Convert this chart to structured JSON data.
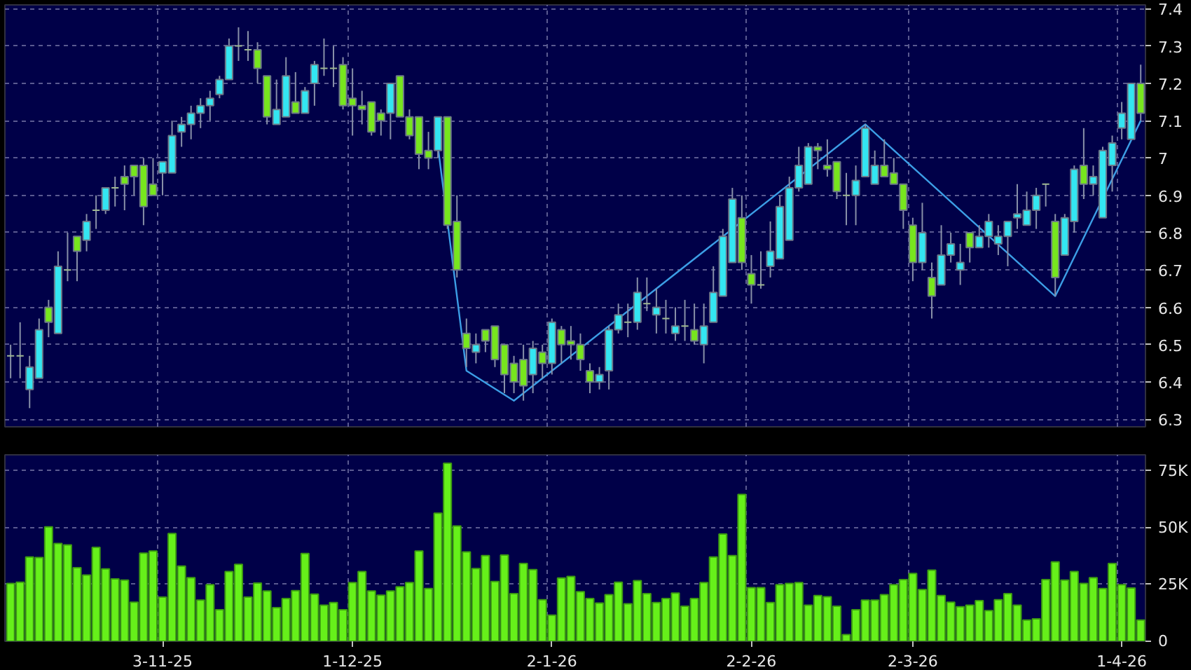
{
  "chart_data": [
    {
      "type": "candlestick",
      "grid": true,
      "tick_labels": "y",
      "categories": [
        null,
        null,
        null,
        null,
        null,
        null,
        null,
        null,
        null,
        null,
        null,
        null,
        null,
        null,
        null,
        null,
        null,
        null,
        null,
        null,
        null,
        null,
        null,
        null,
        null,
        null,
        null,
        null,
        null,
        null,
        null,
        null,
        null,
        null,
        null,
        null,
        null,
        null,
        null,
        null,
        null,
        null,
        null,
        null,
        null,
        null,
        null,
        null,
        null,
        null,
        null,
        null,
        null,
        null,
        null,
        null,
        null,
        null,
        null,
        null,
        null,
        null,
        null,
        null,
        null,
        null,
        null,
        null,
        null,
        null,
        null,
        null,
        null,
        null,
        null,
        null,
        null,
        null,
        null,
        null,
        null,
        null,
        null,
        null,
        null,
        null,
        null,
        null,
        null,
        null,
        null,
        null,
        null,
        null,
        null,
        null,
        null,
        null,
        null,
        null,
        null,
        null,
        null,
        null,
        null,
        null,
        null,
        null,
        null,
        null,
        null,
        null,
        null,
        null,
        null,
        null,
        null,
        null,
        null,
        null
      ],
      "ohlc": [
        [
          6.47,
          6.5,
          6.41,
          6.47
        ],
        [
          6.47,
          6.56,
          6.41,
          6.47
        ],
        [
          6.38,
          6.47,
          6.33,
          6.44
        ],
        [
          6.41,
          6.57,
          6.41,
          6.54
        ],
        [
          6.6,
          6.62,
          6.52,
          6.56
        ],
        [
          6.53,
          6.75,
          6.53,
          6.71
        ],
        [
          6.7,
          6.8,
          6.67,
          6.7
        ],
        [
          6.79,
          6.79,
          6.67,
          6.75
        ],
        [
          6.78,
          6.85,
          6.75,
          6.83
        ],
        [
          6.86,
          6.9,
          6.81,
          6.86
        ],
        [
          6.86,
          6.92,
          6.85,
          6.92
        ],
        [
          6.92,
          6.95,
          6.87,
          6.92
        ],
        [
          6.95,
          6.98,
          6.86,
          6.93
        ],
        [
          6.98,
          6.98,
          6.9,
          6.95
        ],
        [
          6.98,
          7.0,
          6.82,
          6.87
        ],
        [
          6.93,
          7.0,
          6.9,
          6.9
        ],
        [
          6.96,
          6.99,
          6.9,
          6.99
        ],
        [
          6.96,
          7.1,
          6.96,
          7.06
        ],
        [
          7.07,
          7.11,
          7.03,
          7.09
        ],
        [
          7.09,
          7.14,
          7.05,
          7.12
        ],
        [
          7.12,
          7.16,
          7.08,
          7.14
        ],
        [
          7.14,
          7.18,
          7.1,
          7.16
        ],
        [
          7.17,
          7.22,
          7.16,
          7.21
        ],
        [
          7.21,
          7.32,
          7.21,
          7.3
        ],
        [
          7.3,
          7.35,
          7.26,
          7.3
        ],
        [
          7.29,
          7.34,
          7.26,
          7.29
        ],
        [
          7.29,
          7.31,
          7.2,
          7.24
        ],
        [
          7.22,
          7.22,
          7.09,
          7.11
        ],
        [
          7.09,
          7.21,
          7.09,
          7.13
        ],
        [
          7.11,
          7.27,
          7.11,
          7.22
        ],
        [
          7.15,
          7.23,
          7.12,
          7.12
        ],
        [
          7.12,
          7.19,
          7.12,
          7.18
        ],
        [
          7.2,
          7.26,
          7.14,
          7.25
        ],
        [
          7.24,
          7.32,
          7.22,
          7.24
        ],
        [
          7.24,
          7.3,
          7.19,
          7.24
        ],
        [
          7.25,
          7.27,
          7.13,
          7.14
        ],
        [
          7.16,
          7.24,
          7.06,
          7.14
        ],
        [
          7.14,
          7.18,
          7.09,
          7.13
        ],
        [
          7.15,
          7.15,
          7.06,
          7.07
        ],
        [
          7.12,
          7.13,
          7.06,
          7.1
        ],
        [
          7.12,
          7.2,
          7.05,
          7.2
        ],
        [
          7.22,
          7.22,
          7.11,
          7.11
        ],
        [
          7.11,
          7.13,
          7.05,
          7.06
        ],
        [
          7.11,
          7.11,
          6.97,
          7.01
        ],
        [
          7.02,
          7.07,
          6.97,
          7.0
        ],
        [
          7.02,
          7.11,
          7.0,
          7.11
        ],
        [
          7.11,
          7.11,
          6.81,
          6.82
        ],
        [
          6.83,
          6.9,
          6.68,
          6.7
        ],
        [
          6.53,
          6.57,
          6.44,
          6.49
        ],
        [
          6.48,
          6.53,
          6.45,
          6.5
        ],
        [
          6.54,
          6.54,
          6.48,
          6.51
        ],
        [
          6.55,
          6.55,
          6.44,
          6.46
        ],
        [
          6.5,
          6.5,
          6.37,
          6.42
        ],
        [
          6.45,
          6.47,
          6.37,
          6.4
        ],
        [
          6.46,
          6.5,
          6.35,
          6.39
        ],
        [
          6.42,
          6.51,
          6.37,
          6.49
        ],
        [
          6.48,
          6.5,
          6.41,
          6.45
        ],
        [
          6.45,
          6.57,
          6.42,
          6.56
        ],
        [
          6.54,
          6.55,
          6.45,
          6.5
        ],
        [
          6.51,
          6.55,
          6.46,
          6.5
        ],
        [
          6.5,
          6.53,
          6.43,
          6.46
        ],
        [
          6.43,
          6.45,
          6.37,
          6.4
        ],
        [
          6.4,
          6.44,
          6.38,
          6.42
        ],
        [
          6.43,
          6.55,
          6.38,
          6.54
        ],
        [
          6.54,
          6.61,
          6.53,
          6.58
        ],
        [
          6.56,
          6.61,
          6.52,
          6.56
        ],
        [
          6.56,
          6.68,
          6.54,
          6.64
        ],
        [
          6.61,
          6.68,
          6.59,
          6.61
        ],
        [
          6.58,
          6.65,
          6.53,
          6.6
        ],
        [
          6.57,
          6.62,
          6.53,
          6.57
        ],
        [
          6.53,
          6.6,
          6.51,
          6.55
        ],
        [
          6.55,
          6.62,
          6.51,
          6.55
        ],
        [
          6.54,
          6.61,
          6.5,
          6.51
        ],
        [
          6.5,
          6.61,
          6.45,
          6.55
        ],
        [
          6.56,
          6.71,
          6.56,
          6.64
        ],
        [
          6.63,
          6.81,
          6.63,
          6.79
        ],
        [
          6.72,
          6.92,
          6.72,
          6.89
        ],
        [
          6.84,
          6.9,
          6.7,
          6.72
        ],
        [
          6.69,
          6.74,
          6.61,
          6.66
        ],
        [
          6.66,
          6.75,
          6.65,
          6.66
        ],
        [
          6.71,
          6.83,
          6.68,
          6.75
        ],
        [
          6.73,
          6.9,
          6.73,
          6.87
        ],
        [
          6.78,
          6.95,
          6.78,
          6.92
        ],
        [
          6.92,
          7.03,
          6.91,
          6.98
        ],
        [
          6.93,
          7.04,
          6.93,
          7.03
        ],
        [
          7.03,
          7.04,
          6.97,
          7.02
        ],
        [
          6.98,
          7.05,
          6.95,
          6.97
        ],
        [
          6.99,
          6.99,
          6.89,
          6.91
        ],
        [
          6.9,
          6.96,
          6.82,
          6.9
        ],
        [
          6.9,
          6.98,
          6.82,
          6.94
        ],
        [
          6.95,
          7.09,
          6.95,
          7.08
        ],
        [
          6.93,
          7.02,
          6.93,
          6.98
        ],
        [
          6.98,
          7.05,
          6.95,
          6.95
        ],
        [
          6.96,
          7.0,
          6.93,
          6.93
        ],
        [
          6.93,
          6.93,
          6.81,
          6.86
        ],
        [
          6.82,
          6.84,
          6.67,
          6.72
        ],
        [
          6.72,
          6.88,
          6.7,
          6.8
        ],
        [
          6.68,
          6.72,
          6.57,
          6.63
        ],
        [
          6.66,
          6.82,
          6.66,
          6.74
        ],
        [
          6.74,
          6.8,
          6.72,
          6.77
        ],
        [
          6.7,
          6.77,
          6.66,
          6.72
        ],
        [
          6.8,
          6.8,
          6.72,
          6.76
        ],
        [
          6.76,
          6.82,
          6.76,
          6.79
        ],
        [
          6.79,
          6.85,
          6.76,
          6.83
        ],
        [
          6.77,
          6.82,
          6.74,
          6.79
        ],
        [
          6.79,
          6.83,
          6.71,
          6.83
        ],
        [
          6.84,
          6.93,
          6.81,
          6.85
        ],
        [
          6.82,
          6.91,
          6.82,
          6.86
        ],
        [
          6.86,
          6.92,
          6.81,
          6.9
        ],
        [
          6.93,
          6.93,
          6.87,
          6.93
        ],
        [
          6.83,
          6.85,
          6.63,
          6.68
        ],
        [
          6.74,
          6.85,
          6.74,
          6.84
        ],
        [
          6.83,
          6.98,
          6.8,
          6.97
        ],
        [
          6.98,
          7.08,
          6.89,
          6.93
        ],
        [
          6.93,
          6.98,
          6.9,
          6.95
        ],
        [
          6.84,
          7.03,
          6.84,
          7.02
        ],
        [
          6.98,
          7.06,
          6.91,
          7.04
        ],
        [
          7.08,
          7.15,
          7.05,
          7.12
        ],
        [
          7.05,
          7.2,
          7.05,
          7.2
        ],
        [
          7.2,
          7.25,
          7.1,
          7.12
        ]
      ],
      "colors": [
        "#a0b890",
        "#a0b890",
        "#33e6f2",
        "#33e6f2",
        "#77e61e",
        "#33e6f2",
        "#a0b890",
        "#77e61e",
        "#33e6f2",
        "#a0b890",
        "#33e6f2",
        "#a0b890",
        "#77e61e",
        "#77e61e",
        "#77e61e",
        "#77e61e",
        "#33e6f2",
        "#33e6f2",
        "#33e6f2",
        "#33e6f2",
        "#33e6f2",
        "#33e6f2",
        "#33e6f2",
        "#33e6f2",
        "#a0b890",
        "#a0b890",
        "#77e61e",
        "#77e61e",
        "#33e6f2",
        "#33e6f2",
        "#77e61e",
        "#33e6f2",
        "#33e6f2",
        "#a0b890",
        "#a0b890",
        "#77e61e",
        "#77e61e",
        "#77e61e",
        "#77e61e",
        "#77e61e",
        "#33e6f2",
        "#77e61e",
        "#77e61e",
        "#77e61e",
        "#77e61e",
        "#33e6f2",
        "#77e61e",
        "#77e61e",
        "#77e61e",
        "#33e6f2",
        "#77e61e",
        "#77e61e",
        "#77e61e",
        "#77e61e",
        "#77e61e",
        "#33e6f2",
        "#77e61e",
        "#33e6f2",
        "#77e61e",
        "#77e61e",
        "#77e61e",
        "#77e61e",
        "#33e6f2",
        "#33e6f2",
        "#33e6f2",
        "#a0b890",
        "#33e6f2",
        "#a0b890",
        "#33e6f2",
        "#a0b890",
        "#33e6f2",
        "#a0b890",
        "#77e61e",
        "#33e6f2",
        "#33e6f2",
        "#33e6f2",
        "#33e6f2",
        "#77e61e",
        "#77e61e",
        "#a0b890",
        "#33e6f2",
        "#33e6f2",
        "#33e6f2",
        "#33e6f2",
        "#33e6f2",
        "#77e61e",
        "#77e61e",
        "#77e61e",
        "#a0b890",
        "#33e6f2",
        "#33e6f2",
        "#33e6f2",
        "#77e61e",
        "#77e61e",
        "#77e61e",
        "#77e61e",
        "#33e6f2",
        "#77e61e",
        "#33e6f2",
        "#33e6f2",
        "#33e6f2",
        "#77e61e",
        "#33e6f2",
        "#33e6f2",
        "#33e6f2",
        "#33e6f2",
        "#33e6f2",
        "#33e6f2",
        "#33e6f2",
        "#a0b890",
        "#77e61e",
        "#33e6f2",
        "#33e6f2",
        "#77e61e",
        "#33e6f2",
        "#33e6f2",
        "#33e6f2",
        "#33e6f2",
        "#33e6f2",
        "#77e61e"
      ],
      "series": [
        {
          "type": "line",
          "color": "#3c9ee6",
          "values": [
            null,
            null,
            null,
            null,
            null,
            null,
            null,
            null,
            null,
            null,
            null,
            null,
            null,
            null,
            null,
            null,
            null,
            null,
            null,
            null,
            null,
            null,
            null,
            null,
            null,
            null,
            null,
            null,
            null,
            null,
            null,
            null,
            null,
            null,
            null,
            null,
            null,
            null,
            null,
            null,
            null,
            null,
            null,
            null,
            null,
            7.03,
            null,
            null,
            6.43,
            null,
            null,
            null,
            null,
            6.35,
            null,
            null,
            null,
            null,
            null,
            null,
            null,
            null,
            null,
            null,
            null,
            null,
            null,
            null,
            null,
            null,
            null,
            null,
            null,
            null,
            null,
            null,
            null,
            null,
            null,
            null,
            null,
            null,
            null,
            null,
            null,
            null,
            null,
            null,
            null,
            null,
            7.09,
            null,
            null,
            null,
            null,
            null,
            null,
            null,
            null,
            null,
            null,
            null,
            null,
            null,
            null,
            null,
            null,
            null,
            null,
            null,
            6.63,
            null,
            null,
            null,
            null,
            null,
            null,
            null,
            null,
            7.1
          ]
        }
      ],
      "ylim": [
        6.28,
        7.41
      ],
      "yticks": [
        6.3,
        6.4,
        6.5,
        6.6,
        6.7,
        6.8,
        6.9,
        7,
        7.1,
        7.2,
        7.3,
        7.4
      ]
    },
    {
      "type": "bar",
      "grid": true,
      "color": "#66f01a",
      "categories": [
        null,
        null,
        null,
        null,
        null,
        null,
        null,
        null,
        null,
        null,
        null,
        null,
        null,
        null,
        null,
        null,
        "3-11-25",
        null,
        null,
        null,
        null,
        null,
        null,
        null,
        null,
        null,
        null,
        null,
        null,
        null,
        null,
        null,
        null,
        null,
        null,
        null,
        "1-12-25",
        null,
        null,
        null,
        null,
        null,
        null,
        null,
        null,
        null,
        null,
        null,
        null,
        null,
        null,
        null,
        null,
        null,
        null,
        null,
        null,
        "2-1-26",
        null,
        null,
        null,
        null,
        null,
        null,
        null,
        null,
        null,
        null,
        null,
        null,
        null,
        null,
        null,
        null,
        null,
        null,
        null,
        null,
        "2-2-26",
        null,
        null,
        null,
        null,
        null,
        null,
        null,
        null,
        null,
        null,
        null,
        null,
        null,
        null,
        null,
        null,
        "2-3-26",
        null,
        null,
        null,
        null,
        null,
        null,
        null,
        null,
        null,
        null,
        null,
        null,
        null,
        null,
        null,
        null,
        null,
        null,
        null,
        null,
        null,
        "1-4-26",
        null,
        null
      ],
      "values": [
        25400,
        26000,
        37100,
        36800,
        50300,
        43000,
        42400,
        32400,
        29100,
        41300,
        31800,
        27400,
        26900,
        17200,
        38800,
        39700,
        19400,
        47400,
        33100,
        28000,
        18100,
        24900,
        13900,
        30700,
        33800,
        19400,
        25600,
        22100,
        14800,
        18800,
        22300,
        38600,
        20700,
        15900,
        17000,
        13900,
        25800,
        30700,
        22100,
        20300,
        22100,
        24000,
        25800,
        39700,
        23200,
        56300,
        78300,
        50700,
        39300,
        32000,
        37700,
        26300,
        37900,
        21000,
        34200,
        31500,
        18300,
        11500,
        27800,
        28500,
        21800,
        18800,
        16800,
        20500,
        26000,
        16500,
        26700,
        21000,
        17000,
        18800,
        21200,
        15400,
        18800,
        25800,
        37100,
        47200,
        37700,
        64600,
        23600,
        23600,
        17000,
        24900,
        25400,
        25800,
        15900,
        20100,
        19600,
        15400,
        2900,
        13900,
        18100,
        18100,
        20500,
        24900,
        27100,
        29800,
        22700,
        31300,
        20100,
        17200,
        15200,
        15900,
        17900,
        13500,
        18300,
        21000,
        15900,
        9300,
        9900,
        27100,
        34900,
        26900,
        30700,
        25400,
        28000,
        23200,
        34200,
        24900,
        23400,
        9300
      ],
      "ylim": [
        0,
        82000
      ],
      "yticks": [
        0,
        {
          "value": 25000,
          "label": "25K"
        },
        {
          "value": 50000,
          "label": "50K"
        },
        {
          "value": 75000,
          "label": "75K"
        }
      ]
    }
  ]
}
